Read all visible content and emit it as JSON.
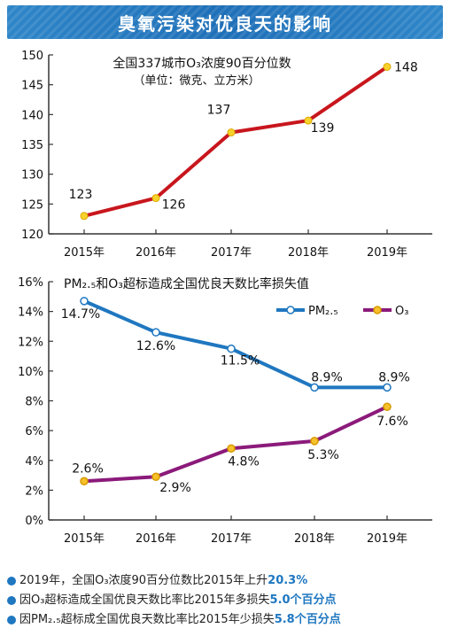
{
  "header": {
    "title": "臭氧污染对优良天的影响"
  },
  "chart_data": [
    {
      "type": "line",
      "title": "全国337城市O₃浓度90百分位数",
      "subtitle": "（单位：微克、立方米）",
      "categories": [
        "2015年",
        "2016年",
        "2017年",
        "2018年",
        "2019年"
      ],
      "series": [
        {
          "values": [
            123,
            126,
            137,
            139,
            148
          ],
          "labels": [
            "123",
            "126",
            "137",
            "139",
            "148"
          ]
        }
      ],
      "ylim": [
        120,
        150
      ],
      "yticks": [
        120,
        125,
        130,
        135,
        140,
        145,
        150
      ],
      "ytick_labels": [
        "120",
        "125",
        "130",
        "135",
        "140",
        "145",
        "150"
      ],
      "grid": false,
      "colors": {
        "line": "#c8161d",
        "marker_fill": "#f6d22c",
        "axis": "#333333"
      }
    },
    {
      "type": "line",
      "title": "PM₂.₅和O₃超标造成全国优良天数比率损失值",
      "categories": [
        "2015年",
        "2016年",
        "2017年",
        "2018年",
        "2019年"
      ],
      "series": [
        {
          "name": "PM₂.₅",
          "values": [
            14.7,
            12.6,
            11.5,
            8.9,
            8.9
          ],
          "labels": [
            "14.7%",
            "12.6%",
            "11.5%",
            "8.9%",
            "8.9%"
          ],
          "color": "#1f77c0"
        },
        {
          "name": "O₃",
          "values": [
            2.6,
            2.9,
            4.8,
            5.3,
            7.6
          ],
          "labels": [
            "2.6%",
            "2.9%",
            "4.8%",
            "5.3%",
            "7.6%"
          ],
          "color": "#8b1a7a"
        }
      ],
      "ylim": [
        0,
        16
      ],
      "yticks": [
        0,
        2,
        4,
        6,
        8,
        10,
        12,
        14,
        16
      ],
      "ytick_labels": [
        "0%",
        "2%",
        "4%",
        "6%",
        "8%",
        "10%",
        "12%",
        "14%",
        "16%"
      ],
      "legend": "top-right",
      "grid": false,
      "colors": {
        "pm_marker_fill": "#ffffff",
        "o3_marker_fill": "#f6c12a",
        "axis": "#333333"
      }
    }
  ],
  "notes": [
    {
      "text": "2019年，全国O₃浓度90百分位数比2015年上升",
      "highlight": "20.3%"
    },
    {
      "text": "因O₃超标造成全国优良天数比率比2015年多损失",
      "highlight": "5.0个百分点"
    },
    {
      "text": "因PM₂.₅超标成全国优良天数比率比2015年少损失",
      "highlight": "5.8个百分点"
    }
  ]
}
